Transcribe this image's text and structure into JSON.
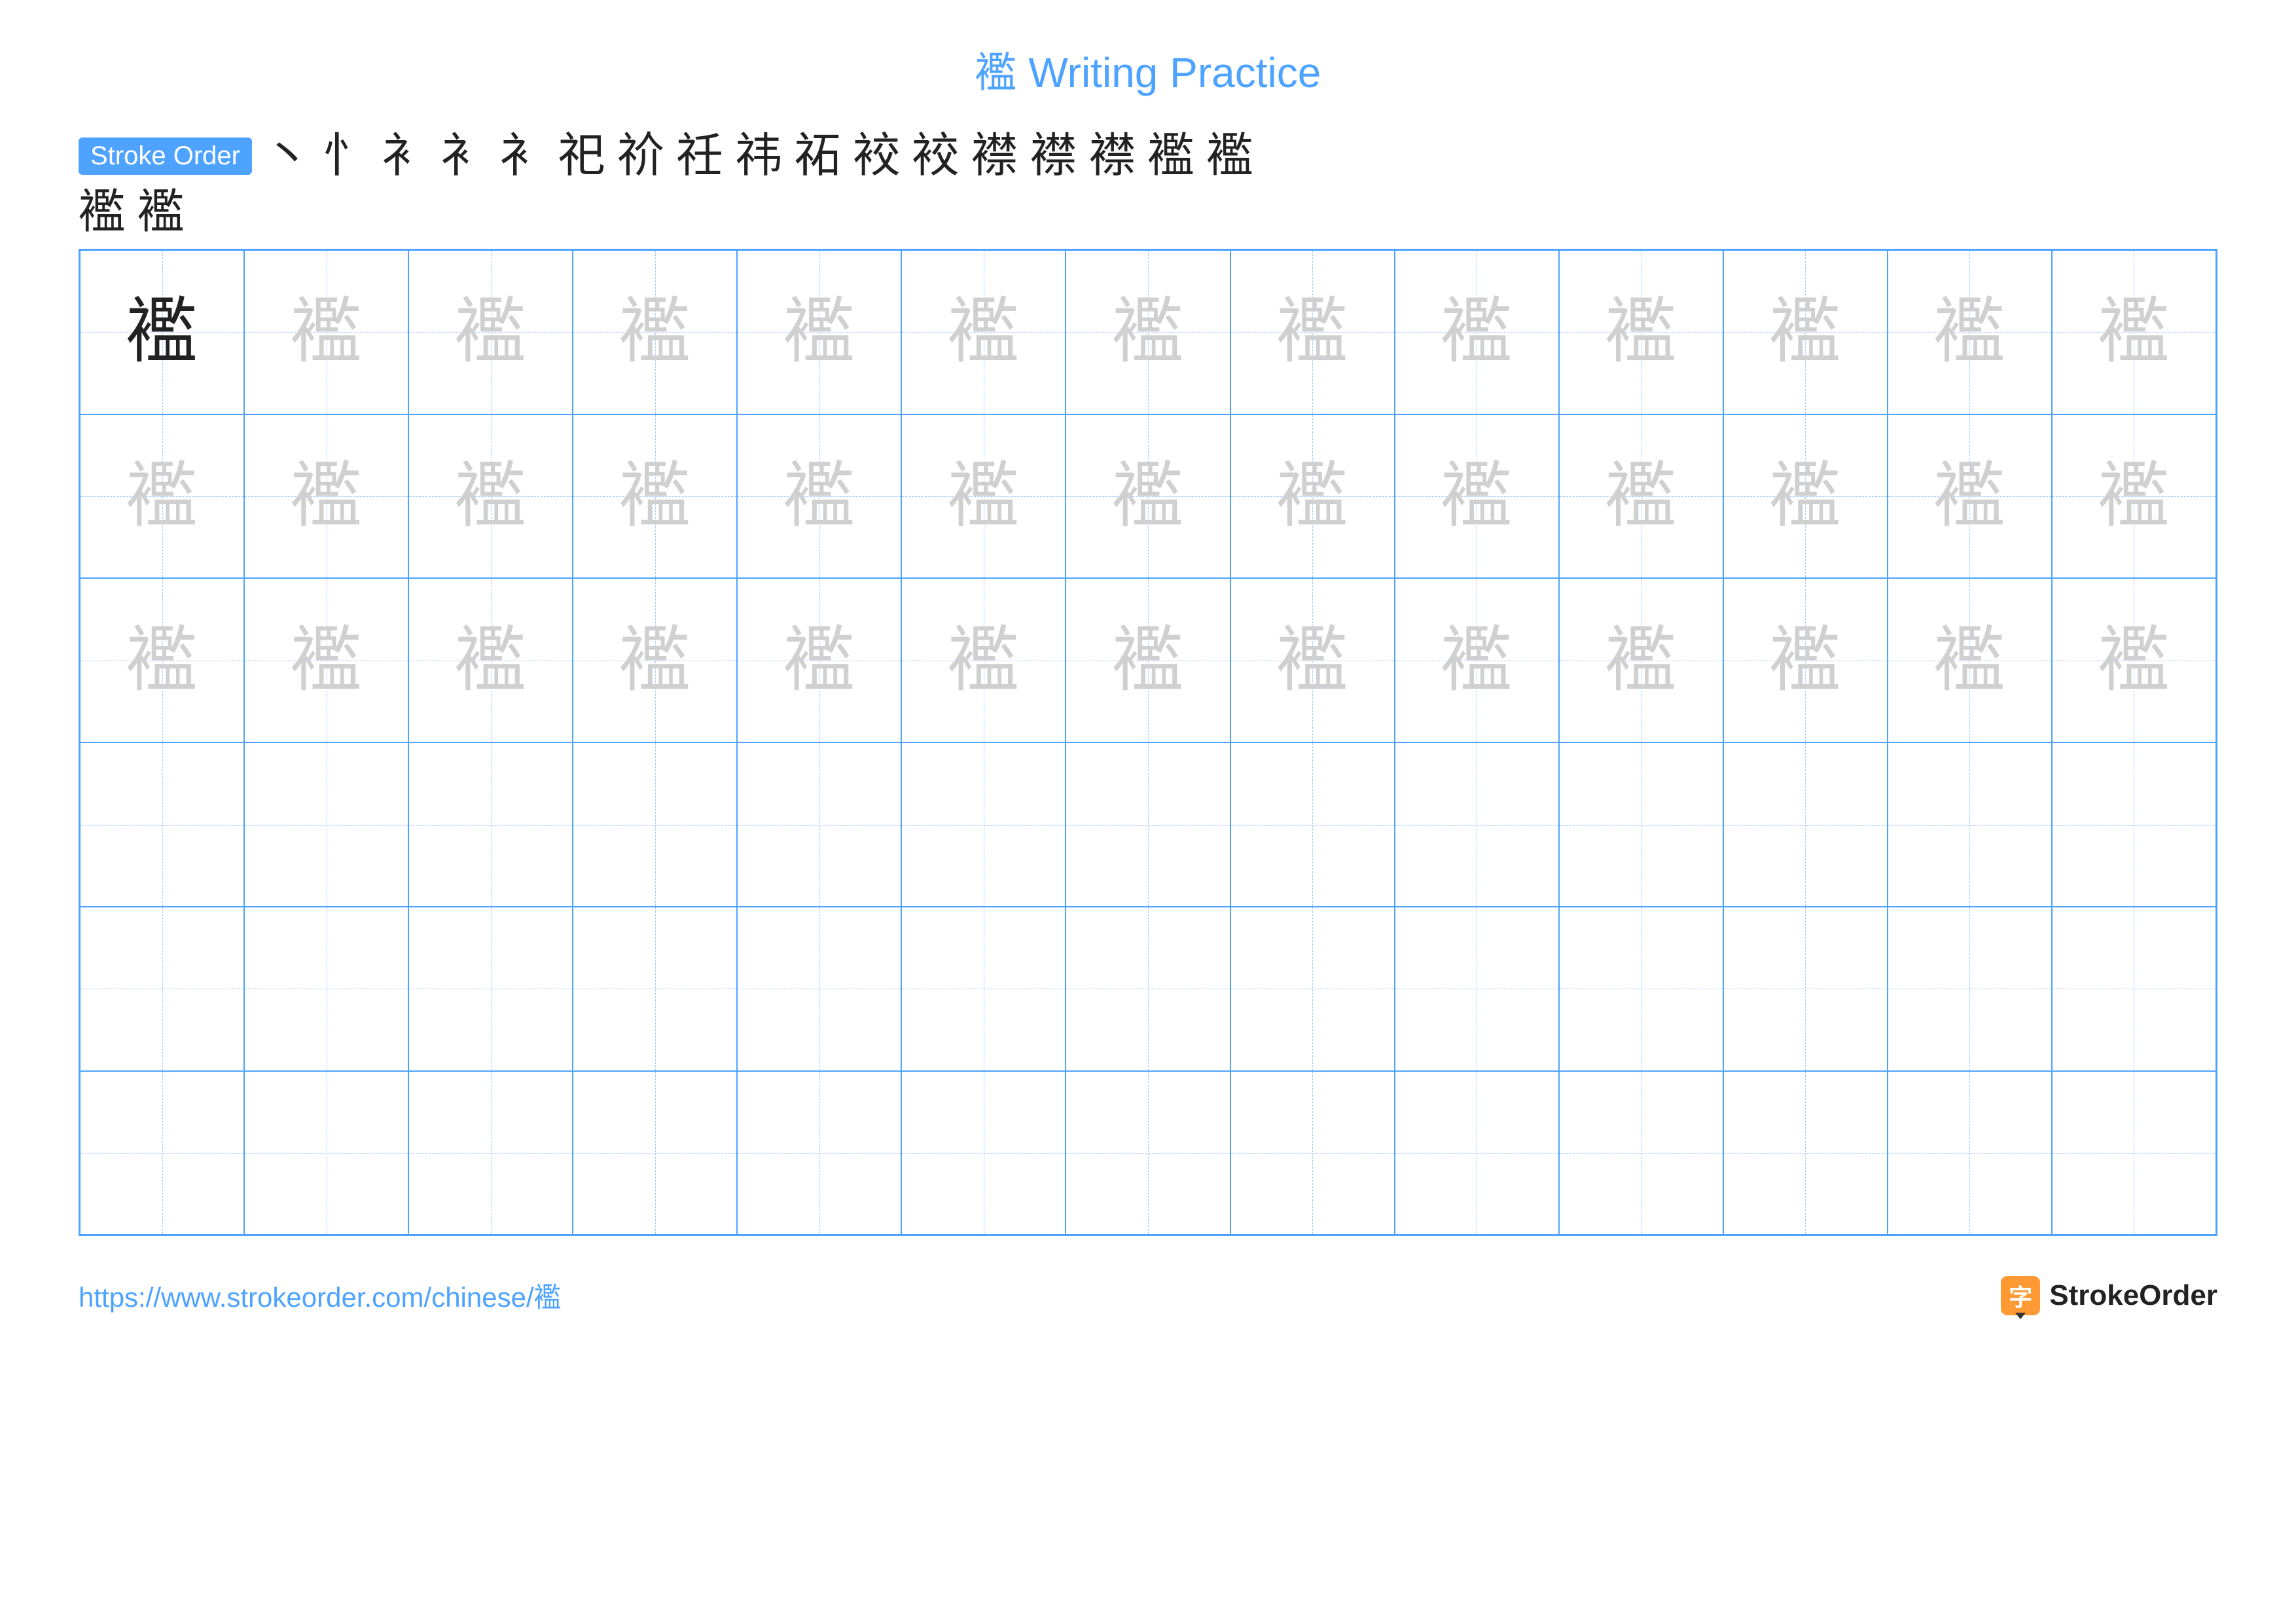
{
  "title": "襤 Writing Practice",
  "character": "襤",
  "stroke_label": "Stroke Order",
  "stroke_steps_row1": [
    "丶",
    "忄",
    "衤",
    "衤",
    "衤",
    "祀",
    "祄",
    "祍",
    "祎",
    "祏",
    "䘨",
    "䘨",
    "襟",
    "襟",
    "襟",
    "襤",
    "襤"
  ],
  "stroke_steps_row2": [
    "襤",
    "襤"
  ],
  "grid": {
    "cols": 13,
    "rows": 6,
    "trace_rows": 3,
    "empty_rows": 3,
    "dark_char_position": {
      "row": 0,
      "col": 0
    }
  },
  "colors": {
    "accent": "#4da3ff",
    "guide_line": "#9cc9ff",
    "char_dark": "#222222",
    "char_light": "#d0d0d0",
    "brand_bg": "#ff9933"
  },
  "footer": {
    "url": "https://www.strokeorder.com/chinese/襤",
    "brand_icon_char": "字",
    "brand_text": "StrokeOrder"
  }
}
